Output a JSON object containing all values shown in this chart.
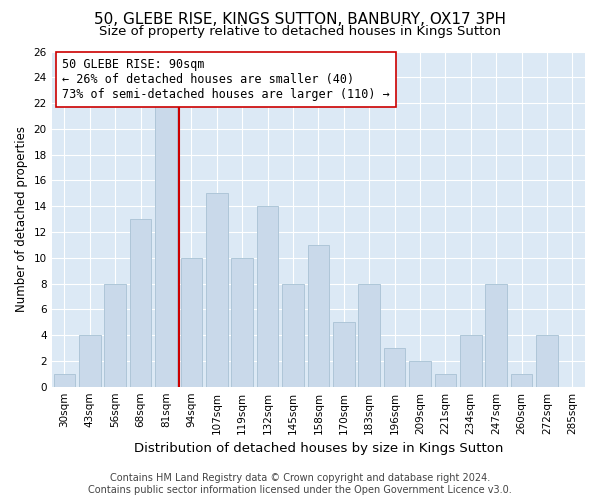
{
  "title": "50, GLEBE RISE, KINGS SUTTON, BANBURY, OX17 3PH",
  "subtitle": "Size of property relative to detached houses in Kings Sutton",
  "xlabel": "Distribution of detached houses by size in Kings Sutton",
  "ylabel": "Number of detached properties",
  "footer_line1": "Contains HM Land Registry data © Crown copyright and database right 2024.",
  "footer_line2": "Contains public sector information licensed under the Open Government Licence v3.0.",
  "bar_labels": [
    "30sqm",
    "43sqm",
    "56sqm",
    "68sqm",
    "81sqm",
    "94sqm",
    "107sqm",
    "119sqm",
    "132sqm",
    "145sqm",
    "158sqm",
    "170sqm",
    "183sqm",
    "196sqm",
    "209sqm",
    "221sqm",
    "234sqm",
    "247sqm",
    "260sqm",
    "272sqm",
    "285sqm"
  ],
  "bar_values": [
    1,
    4,
    8,
    13,
    22,
    10,
    15,
    10,
    14,
    8,
    11,
    5,
    8,
    3,
    2,
    1,
    4,
    8,
    1,
    4,
    0
  ],
  "bar_color": "#c9d9ea",
  "bar_edgecolor": "#aec6d8",
  "plot_bg_color": "#dce9f5",
  "vline_color": "#cc0000",
  "annotation_text": "50 GLEBE RISE: 90sqm\n← 26% of detached houses are smaller (40)\n73% of semi-detached houses are larger (110) →",
  "annotation_box_edgecolor": "#cc0000",
  "annotation_box_facecolor": "#ffffff",
  "ylim": [
    0,
    26
  ],
  "yticks": [
    0,
    2,
    4,
    6,
    8,
    10,
    12,
    14,
    16,
    18,
    20,
    22,
    24,
    26
  ],
  "title_fontsize": 11,
  "subtitle_fontsize": 9.5,
  "xlabel_fontsize": 9.5,
  "ylabel_fontsize": 8.5,
  "tick_fontsize": 7.5,
  "annotation_fontsize": 8.5,
  "footer_fontsize": 7
}
